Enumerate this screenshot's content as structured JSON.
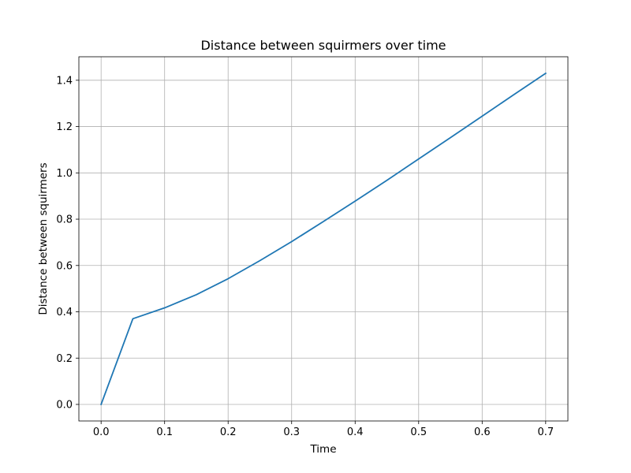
{
  "chart_data": {
    "type": "line",
    "title": "Distance between squirmers over time",
    "xlabel": "Time",
    "ylabel": "Distance between squirmers",
    "xlim": [
      -0.035,
      0.735
    ],
    "ylim": [
      -0.0715,
      1.5015
    ],
    "x_ticks": [
      0.0,
      0.1,
      0.2,
      0.3,
      0.4,
      0.5,
      0.6,
      0.7
    ],
    "x_tick_labels": [
      "0.0",
      "0.1",
      "0.2",
      "0.3",
      "0.4",
      "0.5",
      "0.6",
      "0.7"
    ],
    "y_ticks": [
      0.0,
      0.2,
      0.4,
      0.6,
      0.8,
      1.0,
      1.2,
      1.4
    ],
    "y_tick_labels": [
      "0.0",
      "0.2",
      "0.4",
      "0.6",
      "0.8",
      "1.0",
      "1.2",
      "1.4"
    ],
    "grid": true,
    "series": [
      {
        "color": "#1f77b4",
        "x": [
          0.0,
          0.05,
          0.1,
          0.15,
          0.2,
          0.25,
          0.3,
          0.35,
          0.4,
          0.45,
          0.5,
          0.55,
          0.6,
          0.65,
          0.7
        ],
        "y": [
          0.0,
          0.37,
          0.417,
          0.474,
          0.543,
          0.621,
          0.703,
          0.79,
          0.878,
          0.968,
          1.06,
          1.152,
          1.245,
          1.338,
          1.43
        ]
      }
    ]
  }
}
